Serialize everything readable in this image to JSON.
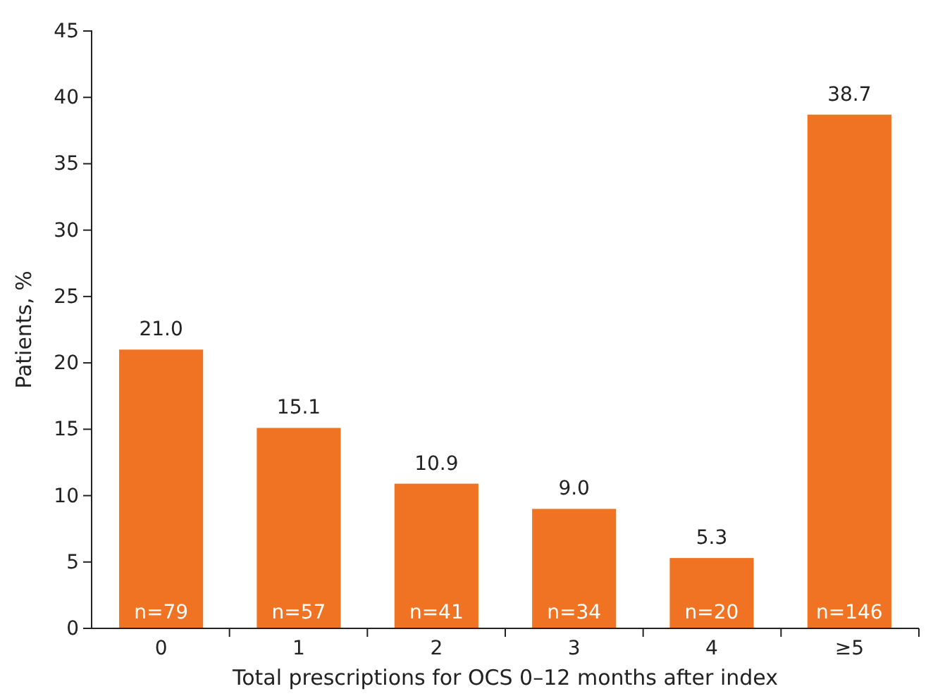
{
  "chart_data": {
    "type": "bar",
    "xlabel": "Total prescriptions for OCS 0–12 months after index",
    "ylabel": "Patients, %",
    "categories": [
      "0",
      "1",
      "2",
      "3",
      "4",
      "≥5"
    ],
    "values": [
      21.0,
      15.1,
      10.9,
      9.0,
      5.3,
      38.7
    ],
    "value_labels": [
      "21.0",
      "15.1",
      "10.9",
      "9.0",
      "5.3",
      "38.7"
    ],
    "color": "#f07323",
    "ylim": [
      0,
      45
    ],
    "yticks": [
      0,
      5,
      10,
      15,
      20,
      25,
      30,
      35,
      40,
      45
    ],
    "grid": false,
    "annotations": [
      {
        "text": "n=79",
        "x": "0",
        "y": 0
      },
      {
        "text": "n=57",
        "x": "1",
        "y": 0
      },
      {
        "text": "n=41",
        "x": "2",
        "y": 0
      },
      {
        "text": "n=34",
        "x": "3",
        "y": 0
      },
      {
        "text": "n=20",
        "x": "4",
        "y": 0
      },
      {
        "text": "n=146",
        "x": "≥5",
        "y": 0
      }
    ]
  }
}
